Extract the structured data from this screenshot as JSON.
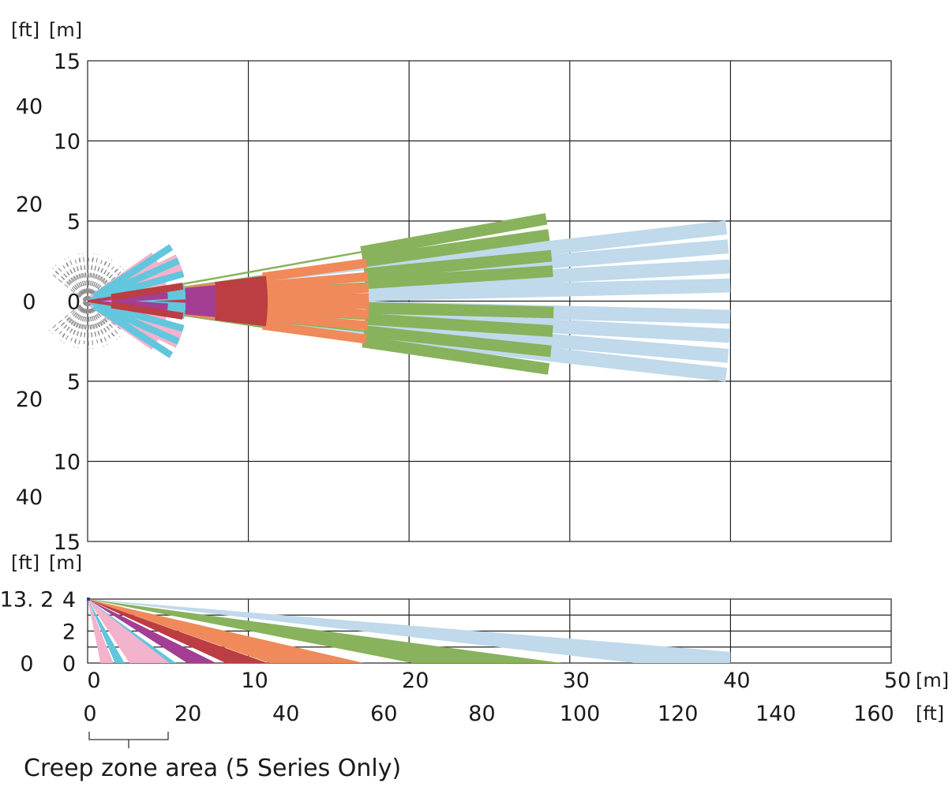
{
  "chart_data": [
    {
      "type": "beam-pattern",
      "view": "top",
      "x_unit": "[m]",
      "y_unit_m": "[m]",
      "y_unit_ft": "[ft]",
      "xlim": [
        0,
        50
      ],
      "ylim": [
        -15,
        15
      ],
      "y_ticks_m": [
        "15",
        "10",
        "5",
        "0",
        "5",
        "10",
        "15"
      ],
      "y_ticks_m_values": [
        15,
        10,
        5,
        0,
        -5,
        -10,
        -15
      ],
      "y_ticks_ft": [
        "40",
        "20",
        "0",
        "20",
        "40"
      ],
      "y_ticks_ft_values": [
        12.192,
        6.096,
        0,
        -6.096,
        -12.192
      ],
      "beam_groups": [
        {
          "color": "#c0d9eb",
          "length_m": 40,
          "angles_deg": [
            6.6,
            4.9,
            3.1,
            1.4,
            -1.4,
            -3.1,
            -4.9,
            -6.6
          ],
          "segments_m": [
            [
              17.5,
              40
            ]
          ]
        },
        {
          "color": "#88b25c",
          "length_m": 29,
          "angles_deg": [
            10.2,
            8.2,
            5.6,
            3.7,
            -1.4,
            -3.7,
            -6.2,
            -8.4
          ],
          "segments_m": [
            [
              17.3,
              29
            ]
          ]
        },
        {
          "color": "#f08a5a",
          "length_m": 17.5,
          "angles_deg": [
            7.8,
            5.0,
            2.7,
            0.7,
            -0.7,
            -2.7,
            -5.0,
            -7.8
          ],
          "segments_m": [
            [
              11,
              17.5
            ]
          ]
        },
        {
          "color": "#bc3d42",
          "length_m": 11.2,
          "angles_deg": [
            6.8,
            4.3,
            2.1,
            0.5,
            -0.5,
            -2.1,
            -4.3,
            -6.8
          ],
          "segments_m": [
            [
              8,
              11.2
            ]
          ]
        },
        {
          "color": "#a33e93",
          "length_m": 8,
          "angles_deg": [
            5.6,
            3.4,
            1.4,
            -1.4,
            -3.4,
            -5.6
          ],
          "segments_m": [
            [
              6.1,
              8
            ]
          ]
        },
        {
          "color": "#62c6dd",
          "length_m": 6.1,
          "angles_deg": [
            8.5,
            5.5,
            3.0,
            -3.0,
            -5.5,
            -8.5
          ],
          "segments_m": [
            [
              3,
              6.1
            ]
          ]
        },
        {
          "color": "#f3b3cc",
          "length_m": 5,
          "angles_deg": [
            35,
            28,
            21,
            13,
            6,
            -6,
            -13,
            -21,
            -28,
            -35
          ],
          "segments_m": [
            [
              0.3,
              5
            ]
          ]
        },
        {
          "color": "#f3b3cc",
          "length_m": 6.2,
          "angles_deg": [
            26,
            20,
            -20,
            -26
          ],
          "segments_m": [
            [
              0.5,
              6.2
            ]
          ]
        },
        {
          "color": "#62c6dd",
          "length_m": 6.2,
          "angles_deg": [
            33,
            24,
            16,
            -16,
            -24,
            -33
          ],
          "segments_m": [
            [
              0.5,
              6.2
            ]
          ]
        },
        {
          "color": "#a33e93",
          "length_m": 5,
          "angles_deg": [
            4,
            -4
          ],
          "segments_m": [
            [
              1.5,
              5
            ]
          ]
        },
        {
          "color": "#bc3d42",
          "length_m": 6,
          "angles_deg": [
            9,
            -9
          ],
          "segments_m": [
            [
              1.5,
              6
            ]
          ]
        }
      ],
      "creep_zone_grey_fan": true
    },
    {
      "type": "beam-pattern",
      "view": "side",
      "x_unit": "[m]",
      "y_unit_m": "[m]",
      "y_unit_ft": "[ft]",
      "xlim": [
        0,
        50
      ],
      "ylim": [
        0,
        4
      ],
      "y_ticks_m": [
        "4",
        "2",
        "0"
      ],
      "y_ticks_m_values": [
        4,
        2,
        0
      ],
      "y_ticks_ft": [
        "13. 2",
        "0"
      ],
      "y_ticks_ft_values": [
        4.023,
        0
      ],
      "x_ticks_m": [
        "0",
        "10",
        "20",
        "30",
        "40",
        "50"
      ],
      "x_ticks_m_values": [
        0,
        10,
        20,
        30,
        40,
        50
      ],
      "x_ticks_ft": [
        "0",
        "20",
        "40",
        "60",
        "80",
        "100",
        "120",
        "140",
        "160"
      ],
      "x_ticks_ft_values": [
        0,
        6.096,
        12.192,
        18.288,
        24.384,
        30.48,
        36.576,
        42.672,
        48.768
      ],
      "x_unit_ft": "[ft]",
      "beams": [
        {
          "color": "#c0d9eb",
          "ground_m": 40,
          "far_top_m": 0.7,
          "near_width_m": 0.08
        },
        {
          "color": "#88b25c",
          "ground_m": 29.5,
          "near_ground_m": 20.2,
          "near_width_m": 0.08
        },
        {
          "color": "#f08a5a",
          "ground_m": 17.2,
          "near_ground_m": 11.3,
          "near_width_m": 0.06
        },
        {
          "color": "#bc3d42",
          "ground_m": 11.2,
          "near_ground_m": 8.6,
          "near_width_m": 0.05
        },
        {
          "color": "#a33e93",
          "ground_m": 8,
          "near_ground_m": 6.2,
          "near_width_m": 0.05
        },
        {
          "color": "#62c6dd",
          "ground_m": 5.5,
          "near_ground_m": 4.4,
          "near_width_m": 0.04
        },
        {
          "color": "#f3b3cc",
          "ground_m": 5.1,
          "near_ground_m": 2.6,
          "near_width_m": 0.04
        },
        {
          "color": "#62c6dd",
          "ground_m": 2.3,
          "near_ground_m": 1.7,
          "near_width_m": 0.03
        },
        {
          "color": "#f3b3cc",
          "ground_m": 1.6,
          "near_ground_m": 0.8,
          "near_width_m": 0.03
        }
      ]
    }
  ],
  "caption": "Creep zone area (5 Series Only)",
  "creep_zone_range_ft": [
    0,
    20
  ]
}
